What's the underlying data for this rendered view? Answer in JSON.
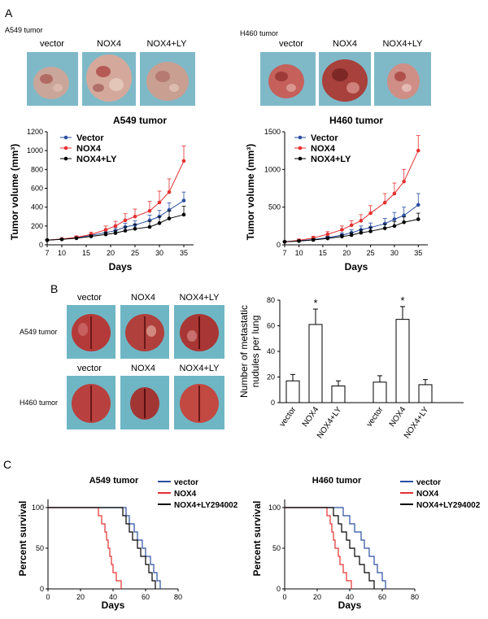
{
  "panels": {
    "A": "A",
    "B": "B",
    "C": "C"
  },
  "tumor_photos": [
    {
      "label": "A549 tumor",
      "groups": [
        "vector",
        "NOX4",
        "NOX4+LY"
      ]
    },
    {
      "label": "H460 tumor",
      "groups": [
        "vector",
        "NOX4",
        "NOX4+LY"
      ]
    }
  ],
  "lung_photos": {
    "rows": [
      {
        "label": "A549 tumor",
        "groups": [
          "vector",
          "NOX4",
          "NOX4+LY"
        ]
      },
      {
        "label": "H460 tumor",
        "groups": [
          "vector",
          "NOX4",
          "NOX4+LY"
        ]
      }
    ]
  },
  "colors": {
    "vector": "#2a4fa0",
    "nox4": "#e53030",
    "nox4ly": "#000000"
  },
  "chart_data": [
    {
      "id": "a549-volume",
      "type": "line",
      "title": "A549 tumor",
      "xlabel": "Days",
      "ylabel": "Tumor volume (mm³)",
      "xlim": [
        7,
        37
      ],
      "ylim": [
        0,
        1200
      ],
      "x_ticks": [
        7,
        10,
        15,
        20,
        25,
        30,
        35
      ],
      "y_ticks": [
        0,
        200,
        400,
        600,
        800,
        1000,
        1200
      ],
      "x": [
        7,
        10,
        13,
        16,
        19,
        21,
        23,
        25,
        28,
        30,
        32,
        35
      ],
      "series": [
        {
          "name": "Vector",
          "color": "#2a4fa0",
          "values": [
            50,
            60,
            75,
            100,
            130,
            150,
            190,
            210,
            260,
            300,
            370,
            470
          ],
          "err": [
            5,
            8,
            10,
            15,
            25,
            30,
            40,
            45,
            55,
            65,
            75,
            90
          ]
        },
        {
          "name": "NOX4",
          "color": "#e53030",
          "values": [
            50,
            62,
            80,
            110,
            160,
            200,
            260,
            300,
            360,
            450,
            560,
            890
          ],
          "err": [
            5,
            8,
            15,
            25,
            40,
            50,
            70,
            80,
            100,
            120,
            140,
            160
          ]
        },
        {
          "name": "NOX4+LY",
          "color": "#000000",
          "values": [
            50,
            58,
            70,
            90,
            110,
            125,
            150,
            170,
            190,
            230,
            280,
            320
          ],
          "err": [
            5,
            8,
            10,
            15,
            25,
            30,
            40,
            50,
            60,
            70,
            80,
            90
          ]
        }
      ],
      "legend_position": "top-left"
    },
    {
      "id": "h460-volume",
      "type": "line",
      "title": "H460 tumor",
      "xlabel": "Days",
      "ylabel": "Tumor volume (mm³)",
      "xlim": [
        7,
        37
      ],
      "ylim": [
        0,
        1500
      ],
      "x_ticks": [
        7,
        10,
        15,
        20,
        25,
        30,
        35
      ],
      "y_ticks": [
        0,
        500,
        1000,
        1500
      ],
      "x": [
        7,
        10,
        13,
        16,
        19,
        21,
        23,
        25,
        28,
        30,
        32,
        35
      ],
      "series": [
        {
          "name": "Vector",
          "color": "#2a4fa0",
          "values": [
            40,
            55,
            70,
            95,
            130,
            160,
            200,
            230,
            280,
            340,
            390,
            530
          ],
          "err": [
            5,
            10,
            15,
            20,
            30,
            40,
            50,
            60,
            70,
            90,
            110,
            150
          ]
        },
        {
          "name": "NOX4",
          "color": "#e53030",
          "values": [
            40,
            60,
            90,
            140,
            200,
            260,
            320,
            420,
            560,
            680,
            840,
            1250
          ],
          "err": [
            5,
            15,
            25,
            35,
            50,
            60,
            80,
            100,
            120,
            140,
            160,
            200
          ]
        },
        {
          "name": "NOX4+LY",
          "color": "#000000",
          "values": [
            40,
            50,
            65,
            85,
            110,
            130,
            160,
            180,
            220,
            250,
            300,
            340
          ],
          "err": [
            5,
            10,
            15,
            20,
            25,
            30,
            40,
            50,
            55,
            60,
            70,
            80
          ]
        }
      ],
      "legend_position": "top-left"
    },
    {
      "id": "metastasis",
      "type": "bar",
      "ylabel": "Number of metastatic nudules per lung",
      "ylim": [
        0,
        80
      ],
      "y_ticks": [
        0,
        20,
        40,
        60,
        80
      ],
      "categories": [
        "vector",
        "NOX4",
        "NOX4+LY",
        "vector",
        "NOX4",
        "NOX4+LY"
      ],
      "values": [
        17,
        61,
        13,
        16,
        65,
        14
      ],
      "err": [
        5,
        12,
        4,
        5,
        10,
        4
      ],
      "annotations": [
        "",
        "*",
        "",
        "",
        "*",
        ""
      ]
    },
    {
      "id": "a549-survival",
      "type": "line",
      "title": "A549 tumor",
      "xlabel": "Days",
      "ylabel": "Percent survival",
      "xlim": [
        0,
        80
      ],
      "ylim": [
        0,
        100
      ],
      "x_ticks": [
        0,
        20,
        40,
        60,
        80
      ],
      "y_ticks": [
        0,
        50,
        100
      ],
      "series": [
        {
          "name": "vector",
          "color": "#2a4fa0",
          "steps": [
            [
              0,
              100
            ],
            [
              48,
              100
            ],
            [
              48,
              90
            ],
            [
              50,
              90
            ],
            [
              50,
              80
            ],
            [
              53,
              80
            ],
            [
              53,
              70
            ],
            [
              55,
              70
            ],
            [
              55,
              60
            ],
            [
              58,
              60
            ],
            [
              58,
              50
            ],
            [
              60,
              50
            ],
            [
              60,
              40
            ],
            [
              63,
              40
            ],
            [
              63,
              30
            ],
            [
              65,
              30
            ],
            [
              65,
              20
            ],
            [
              67,
              20
            ],
            [
              67,
              10
            ],
            [
              69,
              10
            ],
            [
              69,
              0
            ]
          ]
        },
        {
          "name": "NOX4",
          "color": "#e53030",
          "steps": [
            [
              0,
              100
            ],
            [
              31,
              100
            ],
            [
              31,
              90
            ],
            [
              33,
              90
            ],
            [
              33,
              80
            ],
            [
              35,
              80
            ],
            [
              35,
              70
            ],
            [
              36,
              70
            ],
            [
              36,
              60
            ],
            [
              37,
              60
            ],
            [
              37,
              50
            ],
            [
              38,
              50
            ],
            [
              38,
              40
            ],
            [
              39,
              40
            ],
            [
              39,
              30
            ],
            [
              40,
              30
            ],
            [
              40,
              20
            ],
            [
              42,
              20
            ],
            [
              42,
              10
            ],
            [
              45,
              10
            ],
            [
              45,
              0
            ]
          ]
        },
        {
          "name": "NOX4+LY294002",
          "color": "#000000",
          "steps": [
            [
              0,
              100
            ],
            [
              46,
              100
            ],
            [
              46,
              90
            ],
            [
              48,
              90
            ],
            [
              48,
              80
            ],
            [
              50,
              80
            ],
            [
              50,
              70
            ],
            [
              52,
              70
            ],
            [
              52,
              60
            ],
            [
              55,
              60
            ],
            [
              55,
              50
            ],
            [
              57,
              50
            ],
            [
              57,
              40
            ],
            [
              60,
              40
            ],
            [
              60,
              30
            ],
            [
              62,
              30
            ],
            [
              62,
              20
            ],
            [
              64,
              20
            ],
            [
              64,
              10
            ],
            [
              66,
              10
            ],
            [
              66,
              0
            ]
          ]
        }
      ],
      "legend_position": "top-right"
    },
    {
      "id": "h460-survival",
      "type": "line",
      "title": "H460 tumor",
      "xlabel": "Days",
      "ylabel": "Percent survival",
      "xlim": [
        0,
        80
      ],
      "ylim": [
        0,
        100
      ],
      "x_ticks": [
        0,
        20,
        40,
        60,
        80
      ],
      "y_ticks": [
        0,
        50,
        100
      ],
      "series": [
        {
          "name": "vector",
          "color": "#2a4fa0",
          "steps": [
            [
              0,
              100
            ],
            [
              36,
              100
            ],
            [
              36,
              90
            ],
            [
              40,
              90
            ],
            [
              40,
              80
            ],
            [
              43,
              80
            ],
            [
              43,
              70
            ],
            [
              47,
              70
            ],
            [
              47,
              60
            ],
            [
              49,
              60
            ],
            [
              49,
              50
            ],
            [
              52,
              50
            ],
            [
              52,
              40
            ],
            [
              55,
              40
            ],
            [
              55,
              30
            ],
            [
              57,
              30
            ],
            [
              57,
              20
            ],
            [
              60,
              20
            ],
            [
              60,
              10
            ],
            [
              62,
              10
            ],
            [
              62,
              0
            ]
          ]
        },
        {
          "name": "NOX4",
          "color": "#e53030",
          "steps": [
            [
              0,
              100
            ],
            [
              26,
              100
            ],
            [
              26,
              90
            ],
            [
              28,
              90
            ],
            [
              28,
              80
            ],
            [
              29,
              80
            ],
            [
              29,
              70
            ],
            [
              30,
              70
            ],
            [
              30,
              60
            ],
            [
              31,
              60
            ],
            [
              31,
              50
            ],
            [
              33,
              50
            ],
            [
              33,
              40
            ],
            [
              34,
              40
            ],
            [
              34,
              30
            ],
            [
              36,
              30
            ],
            [
              36,
              20
            ],
            [
              38,
              20
            ],
            [
              38,
              10
            ],
            [
              41,
              10
            ],
            [
              41,
              0
            ]
          ]
        },
        {
          "name": "NOX4+LY294002",
          "color": "#000000",
          "steps": [
            [
              0,
              100
            ],
            [
              30,
              100
            ],
            [
              30,
              90
            ],
            [
              33,
              90
            ],
            [
              33,
              80
            ],
            [
              35,
              80
            ],
            [
              35,
              70
            ],
            [
              38,
              70
            ],
            [
              38,
              60
            ],
            [
              40,
              60
            ],
            [
              40,
              50
            ],
            [
              43,
              50
            ],
            [
              43,
              40
            ],
            [
              46,
              40
            ],
            [
              46,
              30
            ],
            [
              49,
              30
            ],
            [
              49,
              20
            ],
            [
              52,
              20
            ],
            [
              52,
              10
            ],
            [
              55,
              10
            ],
            [
              55,
              0
            ]
          ]
        }
      ],
      "legend_position": "top-right"
    }
  ]
}
